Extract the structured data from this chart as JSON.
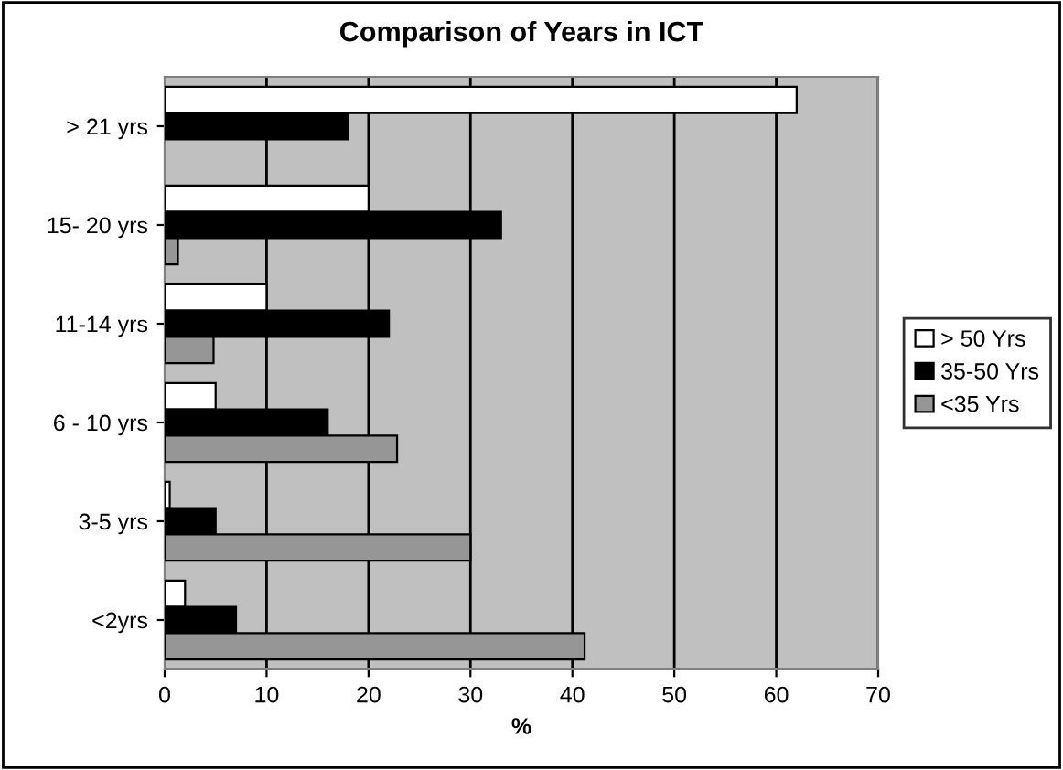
{
  "chart_data": {
    "type": "bar",
    "orientation": "horizontal",
    "title": "Comparison of Years in ICT",
    "xlabel": "%",
    "categories": [
      "> 21 yrs",
      "15- 20 yrs",
      "11-14 yrs",
      "6 - 10 yrs",
      "3-5 yrs",
      "<2yrs"
    ],
    "series": [
      {
        "name": "> 50 Yrs",
        "color": "#ffffff",
        "values": [
          62,
          20,
          10,
          5,
          0.5,
          2
        ]
      },
      {
        "name": "35-50 Yrs",
        "color": "#000000",
        "values": [
          18,
          33,
          22,
          16,
          5,
          7
        ]
      },
      {
        "name": "<35 Yrs",
        "color": "#969696",
        "values": [
          null,
          1.3,
          4.8,
          22.8,
          30,
          41.2
        ]
      }
    ],
    "xlim": [
      0,
      70
    ],
    "xticks": [
      0,
      10,
      20,
      30,
      40,
      50,
      60,
      70
    ],
    "grid": "x",
    "legend": "right"
  }
}
